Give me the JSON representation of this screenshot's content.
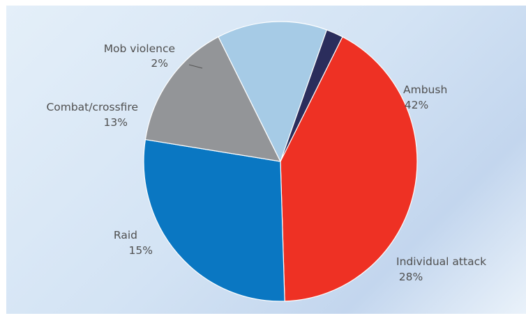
{
  "chart_data": {
    "type": "pie",
    "title": "",
    "start_angle_deg": -63,
    "direction": "clockwise",
    "slices": [
      {
        "label": "Ambush",
        "value": 42,
        "value_label": "42%",
        "color": "#ee3124"
      },
      {
        "label": "Individual attack",
        "value": 28,
        "value_label": "28%",
        "color": "#0a77c2"
      },
      {
        "label": "Raid",
        "value": 15,
        "value_label": "15%",
        "color": "#939598"
      },
      {
        "label": "Combat/crossfire",
        "value": 13,
        "value_label": "13%",
        "color": "#a6cbe6"
      },
      {
        "label": "Mob violence",
        "value": 2,
        "value_label": "2%",
        "color": "#2b2d5c"
      }
    ]
  }
}
